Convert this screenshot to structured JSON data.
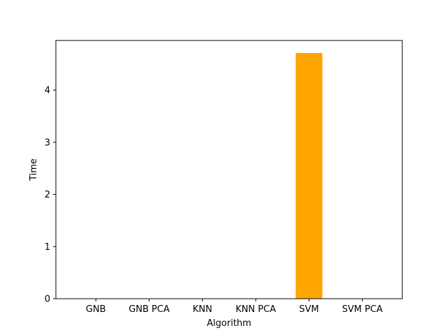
{
  "chart_data": {
    "type": "bar",
    "title": "",
    "xlabel": "Algorithm",
    "ylabel": "Time",
    "categories": [
      "GNB",
      "GNB PCA",
      "KNN",
      "KNN PCA",
      "SVM",
      "SVM PCA"
    ],
    "values": [
      0.0,
      0.0,
      0.0,
      0.0,
      4.71,
      0.0
    ],
    "ylim": [
      0,
      4.95
    ],
    "yticks": [
      0,
      1,
      2,
      3,
      4
    ],
    "bar_color": "#ffa500",
    "grid": false,
    "legend": "none"
  }
}
